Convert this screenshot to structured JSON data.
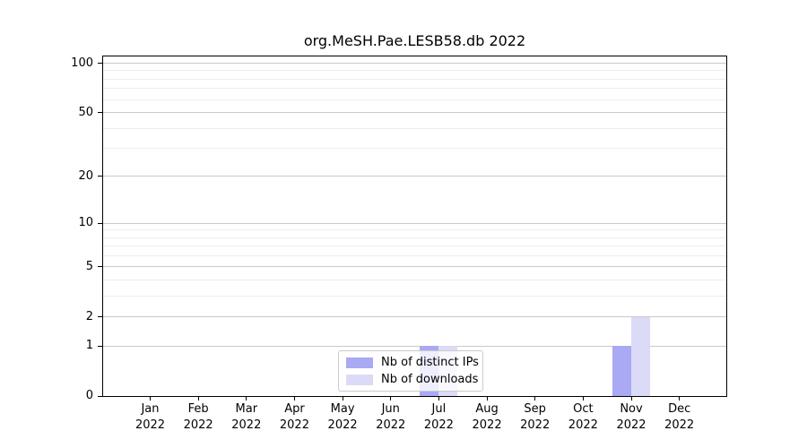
{
  "title": "org.MeSH.Pae.LESB58.db 2022",
  "chart_data": {
    "type": "bar",
    "title": "org.MeSH.Pae.LESB58.db 2022",
    "x_months": [
      "Jan",
      "Feb",
      "Mar",
      "Apr",
      "May",
      "Jun",
      "Jul",
      "Aug",
      "Sep",
      "Oct",
      "Nov",
      "Dec"
    ],
    "x_year": "2022",
    "series": [
      {
        "name": "Nb of distinct IPs",
        "color": "#a9a9f4",
        "values": [
          0,
          0,
          0,
          0,
          0,
          0,
          1,
          0,
          0,
          0,
          1,
          0
        ]
      },
      {
        "name": "Nb of downloads",
        "color": "#dbdbf7",
        "values": [
          0,
          0,
          0,
          0,
          0,
          0,
          1,
          0,
          0,
          0,
          2,
          0
        ]
      }
    ],
    "yscale": "log1p",
    "y_ticks": [
      0,
      1,
      2,
      5,
      10,
      20,
      50,
      100
    ],
    "y_minor_gridlines": [
      3,
      4,
      6,
      7,
      8,
      9,
      30,
      40,
      60,
      70,
      80,
      90
    ],
    "ylim": [
      0,
      113
    ],
    "grid": "horizontal-only",
    "legend_position": "lower-center-inside",
    "colors": {
      "grid_major": "#c9c9c9",
      "grid_minor": "#ededed",
      "axis": "#000000"
    }
  }
}
